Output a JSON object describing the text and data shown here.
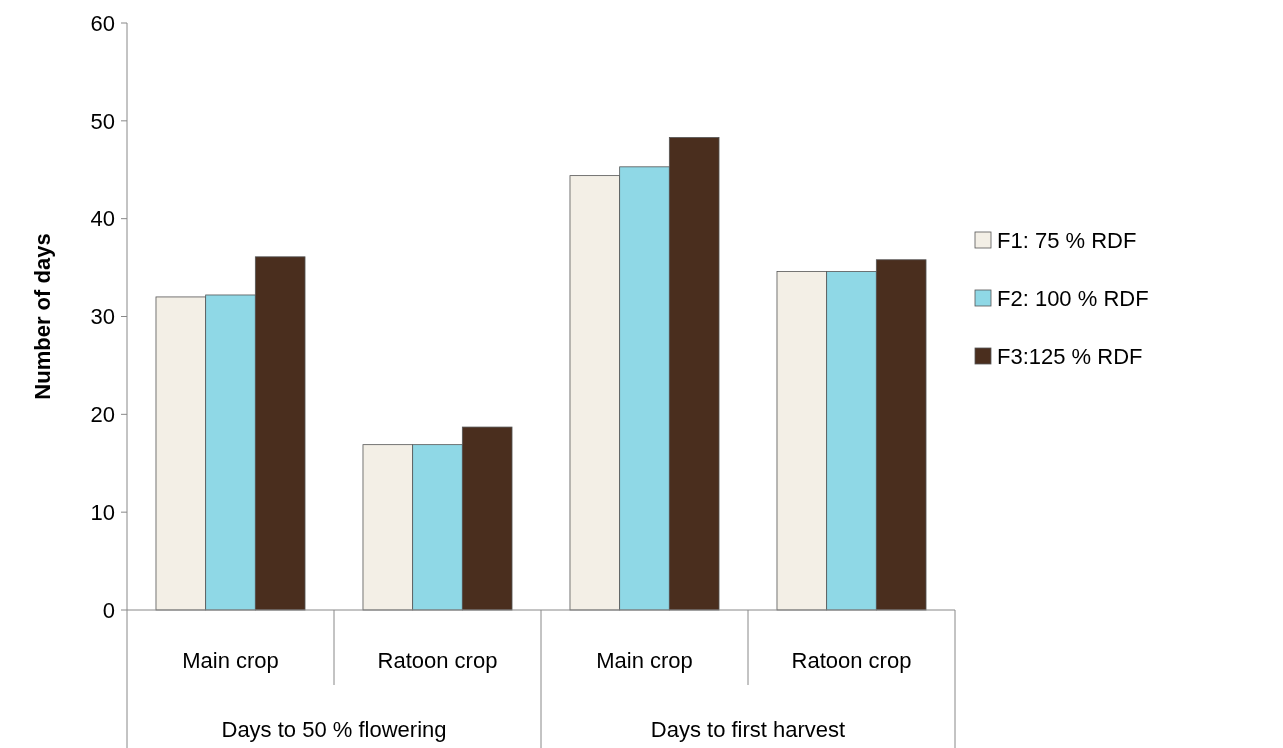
{
  "chart_data": {
    "type": "bar",
    "ylabel": "Number of days",
    "categories": [
      "Main crop",
      "Ratoon crop",
      "Main crop",
      "Ratoon crop"
    ],
    "series": [
      {
        "name": "F1: 75 % RDF",
        "color": "#f3efe6",
        "values": [
          32,
          16.9,
          44.4,
          34.6
        ]
      },
      {
        "name": "F2: 100 % RDF",
        "color": "#8fd8e6",
        "values": [
          32.2,
          16.9,
          45.3,
          34.6
        ]
      },
      {
        "name": "F3:125 % RDF",
        "color": "#4a2e1e",
        "values": [
          36.1,
          18.7,
          48.3,
          35.8
        ]
      }
    ],
    "annotations": [
      "Days to 50 % flowering",
      "Days to first harvest"
    ],
    "ylim": [
      0,
      60
    ],
    "yticks": [
      0,
      10,
      20,
      30,
      40,
      50,
      60
    ],
    "grid": false,
    "legend": "right"
  }
}
